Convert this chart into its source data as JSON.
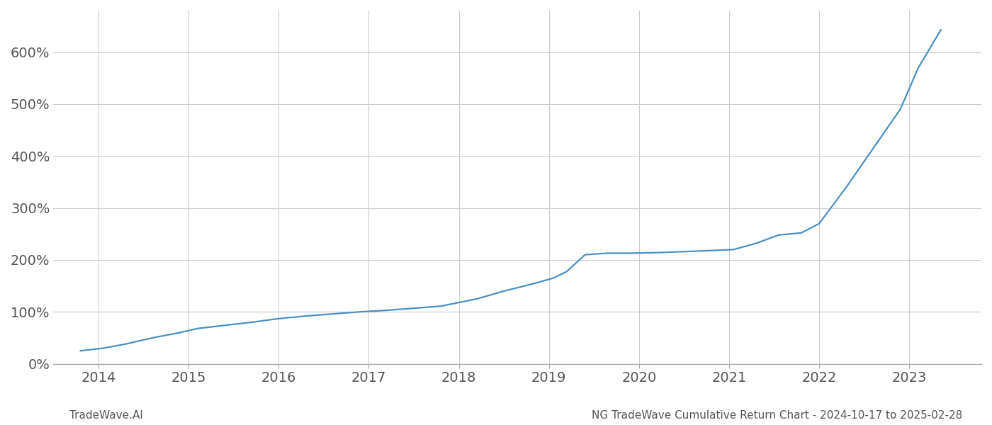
{
  "title": "NG TradeWave Cumulative Return Chart - 2024-10-17 to 2025-02-28",
  "watermark": "TradeWave.AI",
  "line_color": "#4a90c4",
  "background_color": "#ffffff",
  "grid_color": "#cccccc",
  "x_values": [
    2013.8,
    2014.05,
    2014.3,
    2014.6,
    2014.9,
    2015.1,
    2015.4,
    2015.7,
    2016.0,
    2016.3,
    2016.6,
    2016.9,
    2017.2,
    2017.5,
    2017.8,
    2018.0,
    2018.2,
    2018.5,
    2018.8,
    2019.05,
    2019.2,
    2019.4,
    2019.65,
    2019.9,
    2020.2,
    2020.5,
    2020.8,
    2021.05,
    2021.3,
    2021.55,
    2021.8,
    2022.0,
    2022.3,
    2022.6,
    2022.9,
    2023.1,
    2023.35
  ],
  "y_values": [
    25,
    30,
    38,
    50,
    60,
    68,
    74,
    80,
    87,
    92,
    96,
    100,
    103,
    107,
    111,
    118,
    125,
    140,
    153,
    165,
    178,
    210,
    213,
    213,
    214,
    216,
    218,
    220,
    232,
    248,
    252,
    270,
    340,
    415,
    490,
    570,
    643
  ],
  "xlim": [
    2013.5,
    2023.8
  ],
  "ylim": [
    0,
    680
  ],
  "yticks": [
    0,
    100,
    200,
    300,
    400,
    500,
    600
  ],
  "xticks": [
    2014,
    2015,
    2016,
    2017,
    2018,
    2019,
    2020,
    2021,
    2022,
    2023
  ],
  "line_width": 1.6,
  "tick_label_color": "#555555",
  "title_color": "#555555",
  "watermark_color": "#555555",
  "title_fontsize": 11,
  "watermark_fontsize": 11,
  "tick_fontsize": 14
}
